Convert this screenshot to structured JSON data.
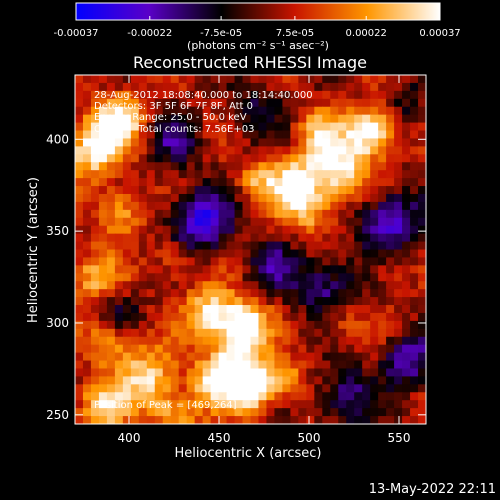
{
  "chart_data": {
    "type": "heatmap",
    "title": "Reconstructed RHESSI Image",
    "colorbar": {
      "min": -0.00037,
      "max": 0.00037,
      "tick_labels": [
        "-0.00037",
        "-0.00022",
        "-7.5e-05",
        "7.5e-05",
        "0.00022",
        "0.00037"
      ],
      "tick_values": [
        -0.00037,
        -0.00022,
        -7.5e-05,
        7.5e-05,
        0.00022,
        0.00037
      ],
      "unit_label": "(photons cm⁻² s⁻¹ asec⁻²)",
      "colors": [
        "#0000ff",
        "#5a00c8",
        "#000000",
        "#c81400",
        "#ff9600",
        "#ffffff"
      ]
    },
    "xlabel": "Heliocentric X (arcsec)",
    "ylabel": "Heliocentric Y (arcsec)",
    "xlim": [
      370,
      565
    ],
    "ylim": [
      245,
      435
    ],
    "x_ticks": [
      400,
      450,
      500,
      550
    ],
    "y_ticks": [
      250,
      300,
      350,
      400
    ],
    "info_lines": [
      "28-Aug-2012 18:08:40.000 to 18:14:40.000",
      "Detectors: 3F 5F 6F 7F 8F, Att 0",
      "Energy Range: 25.0 - 50.0 keV",
      "Clean     Total counts: 7.56E+03"
    ],
    "peak_label": "Position of Peak = [469,264]",
    "peak": [
      469,
      264
    ],
    "bright_sources": [
      {
        "x": 535,
        "y": 405,
        "amp": 1.0,
        "sigma": 9
      },
      {
        "x": 515,
        "y": 385,
        "amp": 0.9,
        "sigma": 13
      },
      {
        "x": 490,
        "y": 375,
        "amp": 0.8,
        "sigma": 10
      },
      {
        "x": 500,
        "y": 360,
        "amp": 0.5,
        "sigma": 9
      },
      {
        "x": 470,
        "y": 378,
        "amp": 0.45,
        "sigma": 7
      },
      {
        "x": 380,
        "y": 395,
        "amp": 0.9,
        "sigma": 11
      },
      {
        "x": 395,
        "y": 410,
        "amp": 0.8,
        "sigma": 10
      },
      {
        "x": 395,
        "y": 360,
        "amp": 0.6,
        "sigma": 9
      },
      {
        "x": 380,
        "y": 325,
        "amp": 0.55,
        "sigma": 10
      },
      {
        "x": 425,
        "y": 335,
        "amp": 0.4,
        "sigma": 8
      },
      {
        "x": 445,
        "y": 305,
        "amp": 0.85,
        "sigma": 10
      },
      {
        "x": 465,
        "y": 300,
        "amp": 0.9,
        "sigma": 9
      },
      {
        "x": 460,
        "y": 285,
        "amp": 0.75,
        "sigma": 9
      },
      {
        "x": 450,
        "y": 268,
        "amp": 0.9,
        "sigma": 10
      },
      {
        "x": 469,
        "y": 264,
        "amp": 1.05,
        "sigma": 8
      },
      {
        "x": 485,
        "y": 270,
        "amp": 0.6,
        "sigma": 8
      },
      {
        "x": 410,
        "y": 270,
        "amp": 0.75,
        "sigma": 11
      },
      {
        "x": 385,
        "y": 255,
        "amp": 0.7,
        "sigma": 10
      },
      {
        "x": 425,
        "y": 250,
        "amp": 0.6,
        "sigma": 9
      },
      {
        "x": 390,
        "y": 290,
        "amp": 0.6,
        "sigma": 9
      },
      {
        "x": 505,
        "y": 405,
        "amp": 0.45,
        "sigma": 8
      },
      {
        "x": 520,
        "y": 300,
        "amp": 0.35,
        "sigma": 8
      },
      {
        "x": 545,
        "y": 330,
        "amp": 0.3,
        "sigma": 7
      }
    ],
    "dark_sources": [
      {
        "x": 440,
        "y": 355,
        "amp": -0.9,
        "sigma": 12
      },
      {
        "x": 425,
        "y": 400,
        "amp": -0.5,
        "sigma": 10
      },
      {
        "x": 545,
        "y": 355,
        "amp": -0.8,
        "sigma": 12
      },
      {
        "x": 555,
        "y": 280,
        "amp": -0.7,
        "sigma": 10
      },
      {
        "x": 510,
        "y": 320,
        "amp": -0.6,
        "sigma": 12
      },
      {
        "x": 520,
        "y": 260,
        "amp": -0.6,
        "sigma": 11
      },
      {
        "x": 395,
        "y": 305,
        "amp": -0.4,
        "sigma": 8
      },
      {
        "x": 480,
        "y": 330,
        "amp": -0.5,
        "sigma": 10
      },
      {
        "x": 555,
        "y": 420,
        "amp": -0.3,
        "sigma": 9
      },
      {
        "x": 470,
        "y": 415,
        "amp": -0.4,
        "sigma": 10
      }
    ]
  },
  "footer": {
    "timestamp": "13-May-2022 22:11"
  }
}
